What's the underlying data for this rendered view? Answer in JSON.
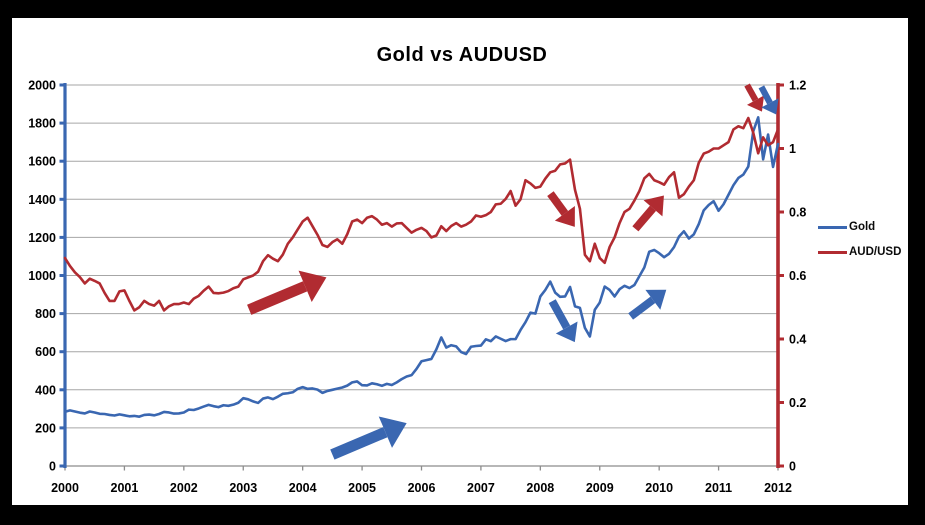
{
  "window": {
    "frame_color": "#000000",
    "canvas_color": "#ffffff"
  },
  "chart_data": {
    "type": "line",
    "title": "Gold vs AUDUSD",
    "grid": "horizontal",
    "x_axis": {
      "start_year": 2000,
      "end_year": 2012,
      "tick_labels": [
        "2000",
        "2001",
        "2002",
        "2003",
        "2004",
        "2005",
        "2006",
        "2007",
        "2008",
        "2009",
        "2010",
        "2011",
        "2012"
      ]
    },
    "left_y_axis": {
      "min": 0,
      "max": 2000,
      "step": 200,
      "tick_labels": [
        "0",
        "200",
        "400",
        "600",
        "800",
        "1000",
        "1200",
        "1400",
        "1600",
        "1800",
        "2000"
      ],
      "color": "#3A67B1",
      "measures": "Gold price (USD/oz)"
    },
    "right_y_axis": {
      "min": 0,
      "max": 1.2,
      "step": 0.2,
      "tick_labels": [
        "0",
        "0.2",
        "0.4",
        "0.6",
        "0.8",
        "1",
        "1.2"
      ],
      "color": "#B12B31",
      "measures": "AUD/USD exchange rate"
    },
    "legend": {
      "position": "right",
      "items": [
        {
          "label": "Gold",
          "color": "#3A67B1"
        },
        {
          "label": "AUD/USD",
          "color": "#B12B31"
        }
      ]
    },
    "sampling": "monthly",
    "x_monthly_start": "2000-01",
    "x_monthly_end": "2012-01",
    "series": [
      {
        "name": "Gold",
        "axis": "left",
        "color": "#3A67B1",
        "values": [
          285,
          292,
          286,
          280,
          276,
          286,
          281,
          274,
          273,
          268,
          265,
          271,
          266,
          261,
          263,
          259,
          268,
          270,
          266,
          273,
          284,
          281,
          275,
          276,
          281,
          296,
          294,
          302,
          312,
          321,
          314,
          309,
          319,
          316,
          322,
          332,
          356,
          350,
          339,
          331,
          354,
          360,
          351,
          364,
          379,
          382,
          387,
          405,
          414,
          405,
          407,
          401,
          384,
          394,
          400,
          406,
          412,
          422,
          439,
          444,
          424,
          423,
          434,
          429,
          421,
          431,
          425,
          439,
          456,
          470,
          477,
          510,
          550,
          556,
          562,
          612,
          675,
          622,
          634,
          628,
          598,
          588,
          626,
          630,
          632,
          665,
          655,
          680,
          668,
          656,
          666,
          666,
          714,
          755,
          805,
          800,
          890,
          924,
          968,
          910,
          888,
          890,
          940,
          838,
          830,
          725,
          680,
          820,
          858,
          942,
          924,
          890,
          928,
          946,
          934,
          950,
          996,
          1042,
          1125,
          1134,
          1117,
          1096,
          1114,
          1149,
          1204,
          1232,
          1194,
          1216,
          1270,
          1342,
          1370,
          1390,
          1340,
          1374,
          1424,
          1474,
          1512,
          1530,
          1572,
          1757,
          1830,
          1610,
          1740,
          1570,
          1690
        ]
      },
      {
        "name": "AUD/USD",
        "axis": "right",
        "color": "#B12B31",
        "values": [
          0.655,
          0.63,
          0.61,
          0.595,
          0.575,
          0.59,
          0.583,
          0.575,
          0.545,
          0.52,
          0.52,
          0.55,
          0.553,
          0.52,
          0.49,
          0.5,
          0.52,
          0.51,
          0.505,
          0.52,
          0.49,
          0.503,
          0.51,
          0.51,
          0.515,
          0.51,
          0.527,
          0.536,
          0.552,
          0.565,
          0.545,
          0.544,
          0.546,
          0.551,
          0.56,
          0.565,
          0.588,
          0.594,
          0.6,
          0.612,
          0.645,
          0.664,
          0.653,
          0.645,
          0.666,
          0.7,
          0.72,
          0.745,
          0.77,
          0.782,
          0.755,
          0.728,
          0.696,
          0.69,
          0.705,
          0.714,
          0.7,
          0.73,
          0.77,
          0.776,
          0.765,
          0.782,
          0.787,
          0.776,
          0.76,
          0.765,
          0.754,
          0.764,
          0.765,
          0.75,
          0.735,
          0.744,
          0.75,
          0.74,
          0.72,
          0.726,
          0.755,
          0.74,
          0.756,
          0.765,
          0.754,
          0.76,
          0.77,
          0.789,
          0.785,
          0.79,
          0.8,
          0.824,
          0.826,
          0.841,
          0.866,
          0.82,
          0.84,
          0.9,
          0.89,
          0.876,
          0.88,
          0.905,
          0.925,
          0.93,
          0.95,
          0.953,
          0.965,
          0.87,
          0.81,
          0.665,
          0.645,
          0.7,
          0.655,
          0.64,
          0.69,
          0.72,
          0.765,
          0.8,
          0.81,
          0.836,
          0.866,
          0.906,
          0.92,
          0.9,
          0.894,
          0.886,
          0.91,
          0.925,
          0.845,
          0.856,
          0.88,
          0.9,
          0.955,
          0.984,
          0.99,
          1.0,
          1.0,
          1.01,
          1.02,
          1.06,
          1.07,
          1.064,
          1.096,
          1.05,
          0.985,
          1.035,
          1.01,
          1.02,
          1.06
        ]
      }
    ],
    "annotations": [
      {
        "shape": "arrow",
        "color": "#B12B31",
        "size": "large",
        "from": {
          "year": 2003.1,
          "value_left": 820
        },
        "to": {
          "year": 2004.4,
          "value_left": 990
        }
      },
      {
        "shape": "arrow",
        "color": "#3A67B1",
        "size": "large",
        "from": {
          "year": 2004.5,
          "value_left": 60
        },
        "to": {
          "year": 2005.75,
          "value_left": 225
        }
      },
      {
        "shape": "arrow",
        "color": "#B12B31",
        "size": "medium",
        "from": {
          "year": 2008.17,
          "value_left": 1430
        },
        "to": {
          "year": 2008.58,
          "value_left": 1255
        }
      },
      {
        "shape": "arrow",
        "color": "#3A67B1",
        "size": "medium",
        "from": {
          "year": 2008.2,
          "value_left": 865
        },
        "to": {
          "year": 2008.58,
          "value_left": 650
        }
      },
      {
        "shape": "arrow",
        "color": "#B12B31",
        "size": "medium",
        "from": {
          "year": 2009.6,
          "value_left": 1245
        },
        "to": {
          "year": 2010.08,
          "value_left": 1420
        }
      },
      {
        "shape": "arrow",
        "color": "#3A67B1",
        "size": "medium",
        "from": {
          "year": 2009.52,
          "value_left": 785
        },
        "to": {
          "year": 2010.12,
          "value_left": 925
        }
      },
      {
        "shape": "arrow",
        "color": "#B12B31",
        "size": "small",
        "from": {
          "year": 2011.48,
          "value_left": 2000
        },
        "to": {
          "year": 2011.73,
          "value_left": 1860
        }
      },
      {
        "shape": "arrow",
        "color": "#3A67B1",
        "size": "small",
        "from": {
          "year": 2011.72,
          "value_left": 1990
        },
        "to": {
          "year": 2011.97,
          "value_left": 1845
        }
      }
    ],
    "style": {
      "gridline_color": "#A6A6A6",
      "x_axis_color": "#8C8C8C",
      "tick_label_color": "#000000"
    }
  }
}
